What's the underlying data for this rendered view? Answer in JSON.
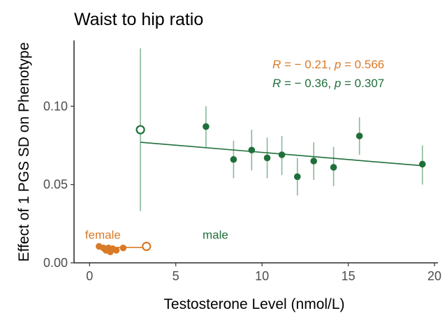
{
  "chart_data": {
    "type": "scatter",
    "title": "Waist to hip ratio",
    "xlabel": "Testosterone Level (nmol/L)",
    "ylabel": "Effect of 1 PGS SD on Phenotype",
    "xlim": [
      -0.9,
      20.2
    ],
    "ylim": [
      0.0,
      0.142
    ],
    "x_ticks": [
      0,
      5,
      10,
      15,
      20
    ],
    "y_ticks": [
      0.0,
      0.05,
      0.1
    ],
    "x_tick_labels": [
      "0",
      "5",
      "10",
      "15",
      "20"
    ],
    "y_tick_labels": [
      "0.00",
      "0.05",
      "0.10"
    ],
    "grid": false,
    "legend": "none",
    "series": [
      {
        "color": "#1f6f3a",
        "errorbar_color": "#88b898",
        "group_label": "male",
        "points": [
          {
            "x": 2.95,
            "y": 0.085,
            "lo": 0.033,
            "hi": 0.137,
            "hollow": true
          },
          {
            "x": 6.75,
            "y": 0.087,
            "lo": 0.074,
            "hi": 0.1,
            "hollow": false
          },
          {
            "x": 8.35,
            "y": 0.066,
            "lo": 0.054,
            "hi": 0.078,
            "hollow": false
          },
          {
            "x": 9.4,
            "y": 0.072,
            "lo": 0.059,
            "hi": 0.085,
            "hollow": false
          },
          {
            "x": 10.3,
            "y": 0.067,
            "lo": 0.054,
            "hi": 0.08,
            "hollow": false
          },
          {
            "x": 11.15,
            "y": 0.069,
            "lo": 0.056,
            "hi": 0.081,
            "hollow": false
          },
          {
            "x": 12.05,
            "y": 0.055,
            "lo": 0.043,
            "hi": 0.067,
            "hollow": false
          },
          {
            "x": 13.0,
            "y": 0.065,
            "lo": 0.053,
            "hi": 0.077,
            "hollow": false
          },
          {
            "x": 14.15,
            "y": 0.061,
            "lo": 0.049,
            "hi": 0.074,
            "hollow": false
          },
          {
            "x": 15.65,
            "y": 0.081,
            "lo": 0.069,
            "hi": 0.093,
            "hollow": false
          },
          {
            "x": 19.3,
            "y": 0.063,
            "lo": 0.05,
            "hi": 0.075,
            "hollow": false
          }
        ],
        "trend": {
          "x0": 2.95,
          "y0": 0.077,
          "x1": 19.3,
          "y1": 0.062
        }
      },
      {
        "color": "#d97a28",
        "errorbar_color": "#e6a66a",
        "group_label": "female",
        "points": [
          {
            "x": 0.55,
            "y": 0.0105,
            "lo": 0.0105,
            "hi": 0.0105,
            "hollow": false
          },
          {
            "x": 0.8,
            "y": 0.0095,
            "lo": 0.0095,
            "hi": 0.0095,
            "hollow": false
          },
          {
            "x": 0.95,
            "y": 0.008,
            "lo": 0.008,
            "hi": 0.008,
            "hollow": false
          },
          {
            "x": 1.1,
            "y": 0.0095,
            "lo": 0.0095,
            "hi": 0.0095,
            "hollow": false
          },
          {
            "x": 1.2,
            "y": 0.007,
            "lo": 0.007,
            "hi": 0.007,
            "hollow": false
          },
          {
            "x": 1.35,
            "y": 0.009,
            "lo": 0.009,
            "hi": 0.009,
            "hollow": false
          },
          {
            "x": 1.55,
            "y": 0.008,
            "lo": 0.008,
            "hi": 0.008,
            "hollow": false
          },
          {
            "x": 1.95,
            "y": 0.0095,
            "lo": 0.0095,
            "hi": 0.0095,
            "hollow": false
          },
          {
            "x": 3.3,
            "y": 0.0105,
            "lo": 0.0105,
            "hi": 0.0105,
            "hollow": true
          }
        ],
        "trend": {
          "x0": 0.5,
          "y0": 0.0098,
          "x1": 3.3,
          "y1": 0.0098
        }
      }
    ],
    "annotations": [
      {
        "text_r": "R",
        "text_eq": " = − 0.21, ",
        "text_p": "p",
        "text_val": " = 0.566",
        "color": "#d97a28"
      },
      {
        "text_r": "R",
        "text_eq": " = − 0.36, ",
        "text_p": "p",
        "text_val": " = 0.307",
        "color": "#1f6f3a"
      }
    ],
    "group_labels": [
      {
        "text": "female",
        "x": 0.55,
        "y": 0.0175,
        "color": "#d97a28"
      },
      {
        "text": "male",
        "x": 6.55,
        "y": 0.0175,
        "color": "#1f6f3a"
      }
    ]
  }
}
